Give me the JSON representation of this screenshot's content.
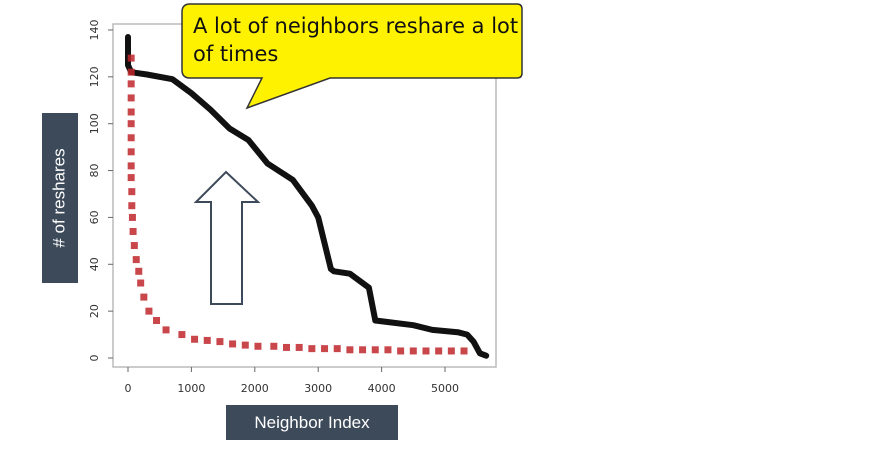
{
  "chart_data": {
    "type": "scatter",
    "title": "",
    "xlabel": "Neighbor Index",
    "ylabel": "# of reshares",
    "xlim": [
      0,
      5700
    ],
    "ylim": [
      0,
      140
    ],
    "xticks": [
      0,
      1000,
      2000,
      3000,
      4000,
      5000
    ],
    "yticks": [
      0,
      20,
      40,
      60,
      80,
      100,
      120,
      140
    ],
    "grid": false,
    "series": [
      {
        "color": "#111111",
        "style": "dense-points",
        "x": [
          0,
          0,
          50,
          300,
          700,
          1000,
          1300,
          1600,
          1900,
          2200,
          2600,
          2900,
          3000,
          3200,
          3250,
          3500,
          3800,
          3900,
          4500,
          4800,
          5200,
          5350,
          5450,
          5550,
          5650
        ],
        "y": [
          137,
          125,
          122,
          121,
          119,
          113,
          106,
          98,
          93,
          83,
          76,
          65,
          60,
          38,
          37,
          36,
          30,
          16,
          14,
          12,
          11,
          10,
          7,
          2,
          1
        ]
      },
      {
        "color": "#c0262b",
        "style": "square-markers",
        "x": [
          50,
          50,
          50,
          50,
          50,
          50,
          50,
          50,
          50,
          50,
          60,
          60,
          70,
          80,
          100,
          130,
          170,
          200,
          250,
          330,
          450,
          600,
          850,
          1050,
          1250,
          1450,
          1650,
          1850,
          2050,
          2300,
          2500,
          2700,
          2900,
          3100,
          3300,
          3500,
          3700,
          3900,
          4100,
          4300,
          4500,
          4700,
          4900,
          5100,
          5300
        ],
        "y": [
          128,
          122,
          117,
          111,
          105,
          100,
          94,
          88,
          82,
          77,
          71,
          65,
          60,
          54,
          48,
          42,
          37,
          32,
          26,
          20,
          16,
          12,
          10,
          8,
          7.5,
          7,
          6,
          5.5,
          5,
          5,
          4.5,
          4.5,
          4,
          4,
          4,
          3.5,
          3.5,
          3.5,
          3.5,
          3,
          3,
          3,
          3,
          3,
          3
        ]
      }
    ],
    "annotations": [
      {
        "text": "A lot of neighbors reshare a lot of times",
        "shape": "yellow-speech-callout"
      },
      {
        "shape": "up-arrow-outline",
        "color": "#3d4a5a"
      }
    ],
    "colors": {
      "callout": "#fff200",
      "label_box": "#3d4a5a"
    }
  }
}
